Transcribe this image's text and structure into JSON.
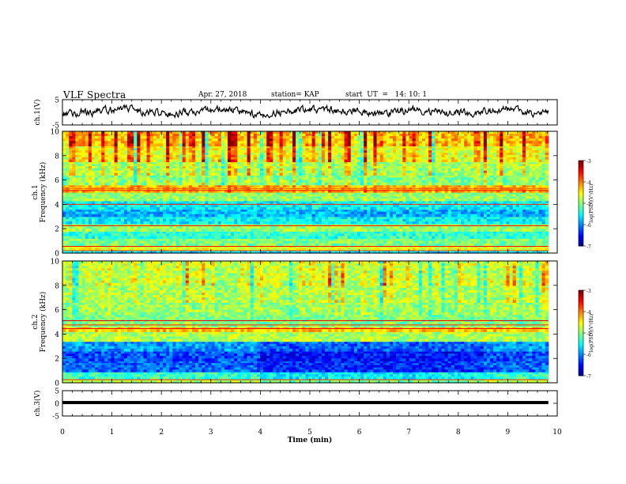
{
  "header": {
    "title": "VLF Spectra",
    "date": "Apr. 27, 2018",
    "station": "station= KAP",
    "start": "start  UT  =   14: 10: 1"
  },
  "chart_data": [
    {
      "type": "line",
      "panel": "ch1-waveform",
      "ylabel": "ch.1(V)",
      "ylim": [
        -5,
        5
      ],
      "yticks": [
        "5",
        "-5"
      ],
      "xlim": [
        0,
        10
      ],
      "x_extent": [
        0,
        9.82
      ],
      "description_points": [
        {
          "x": 0.0,
          "y": -0.5
        },
        {
          "x": 0.5,
          "y": -0.3
        },
        {
          "x": 1.0,
          "y": 1.3
        },
        {
          "x": 1.5,
          "y": 0.8
        },
        {
          "x": 2.0,
          "y": -0.2
        },
        {
          "x": 2.5,
          "y": -0.4
        },
        {
          "x": 3.0,
          "y": 1.0
        },
        {
          "x": 3.5,
          "y": 0.5
        },
        {
          "x": 4.0,
          "y": -1.5
        },
        {
          "x": 4.5,
          "y": 0.6
        },
        {
          "x": 5.0,
          "y": 1.1
        },
        {
          "x": 5.5,
          "y": 0.9
        },
        {
          "x": 6.0,
          "y": 0.3
        },
        {
          "x": 6.5,
          "y": -0.4
        },
        {
          "x": 7.0,
          "y": 0.6
        },
        {
          "x": 7.5,
          "y": 0.4
        },
        {
          "x": 8.0,
          "y": -0.2
        },
        {
          "x": 8.5,
          "y": 0.4
        },
        {
          "x": 9.0,
          "y": 1.0
        },
        {
          "x": 9.5,
          "y": 0.0
        },
        {
          "x": 9.82,
          "y": -0.3
        }
      ]
    },
    {
      "type": "heatmap",
      "panel": "ch1-spectrogram",
      "ylabel": "ch.1\nFrequency (kHz)",
      "ylim": [
        0,
        10
      ],
      "yticks": [
        "0",
        "2",
        "4",
        "6",
        "8",
        "10"
      ],
      "xlim": [
        0,
        10
      ],
      "x_extent": [
        0,
        9.82
      ],
      "log_psd_range": [
        -7,
        -3
      ],
      "frequency_bands": [
        {
          "f": [
            0.0,
            0.25
          ],
          "v": -5.6
        },
        {
          "f": [
            0.25,
            0.6
          ],
          "v": -4.6
        },
        {
          "f": [
            0.6,
            1.2
          ],
          "v": -5.0
        },
        {
          "f": [
            1.2,
            1.8
          ],
          "v": -5.3
        },
        {
          "f": [
            1.8,
            2.4
          ],
          "v": -4.9
        },
        {
          "f": [
            2.4,
            3.0
          ],
          "v": -5.5
        },
        {
          "f": [
            3.0,
            3.6
          ],
          "v": -5.8
        },
        {
          "f": [
            3.6,
            4.3
          ],
          "v": -5.5
        },
        {
          "f": [
            4.3,
            5.0
          ],
          "v": -4.9
        },
        {
          "f": [
            5.0,
            5.6
          ],
          "v": -4.2
        },
        {
          "f": [
            5.6,
            6.4
          ],
          "v": -5.0
        },
        {
          "f": [
            6.4,
            7.5
          ],
          "v": -4.9
        },
        {
          "f": [
            7.5,
            8.8
          ],
          "v": -4.6
        },
        {
          "f": [
            8.8,
            10.0
          ],
          "v": -4.3
        }
      ]
    },
    {
      "type": "heatmap",
      "panel": "ch2-spectrogram",
      "ylabel": "ch.2\nFrequency (kHz)",
      "ylim": [
        0,
        10
      ],
      "yticks": [
        "0",
        "2",
        "4",
        "6",
        "8",
        "10"
      ],
      "xlim": [
        0,
        10
      ],
      "x_extent": [
        0,
        9.82
      ],
      "log_psd_range": [
        -7,
        -3
      ],
      "frequency_bands": [
        {
          "f": [
            0.0,
            0.3
          ],
          "v": -4.8
        },
        {
          "f": [
            0.3,
            0.9
          ],
          "v": -5.3
        },
        {
          "f": [
            0.9,
            1.8
          ],
          "v": -6.1
        },
        {
          "f": [
            1.8,
            2.6
          ],
          "v": -6.2
        },
        {
          "f": [
            2.6,
            3.4
          ],
          "v": -5.9
        },
        {
          "f": [
            3.4,
            4.2
          ],
          "v": -4.8
        },
        {
          "f": [
            4.2,
            4.6
          ],
          "v": -4.3
        },
        {
          "f": [
            4.6,
            5.6
          ],
          "v": -5.0
        },
        {
          "f": [
            5.6,
            6.6
          ],
          "v": -4.9
        },
        {
          "f": [
            6.6,
            8.0
          ],
          "v": -4.8
        },
        {
          "f": [
            8.0,
            10.0
          ],
          "v": -4.7
        }
      ]
    },
    {
      "type": "line",
      "panel": "ch3-waveform",
      "ylabel": "ch.3(V)",
      "ylim": [
        -5,
        5
      ],
      "yticks": [
        "5",
        "0",
        "-5"
      ],
      "xlim": [
        0,
        10
      ],
      "x_extent": [
        0,
        9.82
      ],
      "xlabel": "Time (min)",
      "xticks": [
        "0",
        "1",
        "2",
        "3",
        "4",
        "5",
        "6",
        "7",
        "8",
        "9",
        "10"
      ],
      "points": [
        {
          "x": 0,
          "y": 0.3
        },
        {
          "x": 9.82,
          "y": 0.3
        }
      ]
    }
  ],
  "colorbar": {
    "label": "log(PSD)(V²/Hz)",
    "ticks": [
      "-3",
      "-4",
      "-5",
      "-6",
      "-7"
    ],
    "range": [
      -7,
      -3
    ]
  },
  "colors": {
    "waveform": "#000000",
    "axis": "#000000"
  }
}
